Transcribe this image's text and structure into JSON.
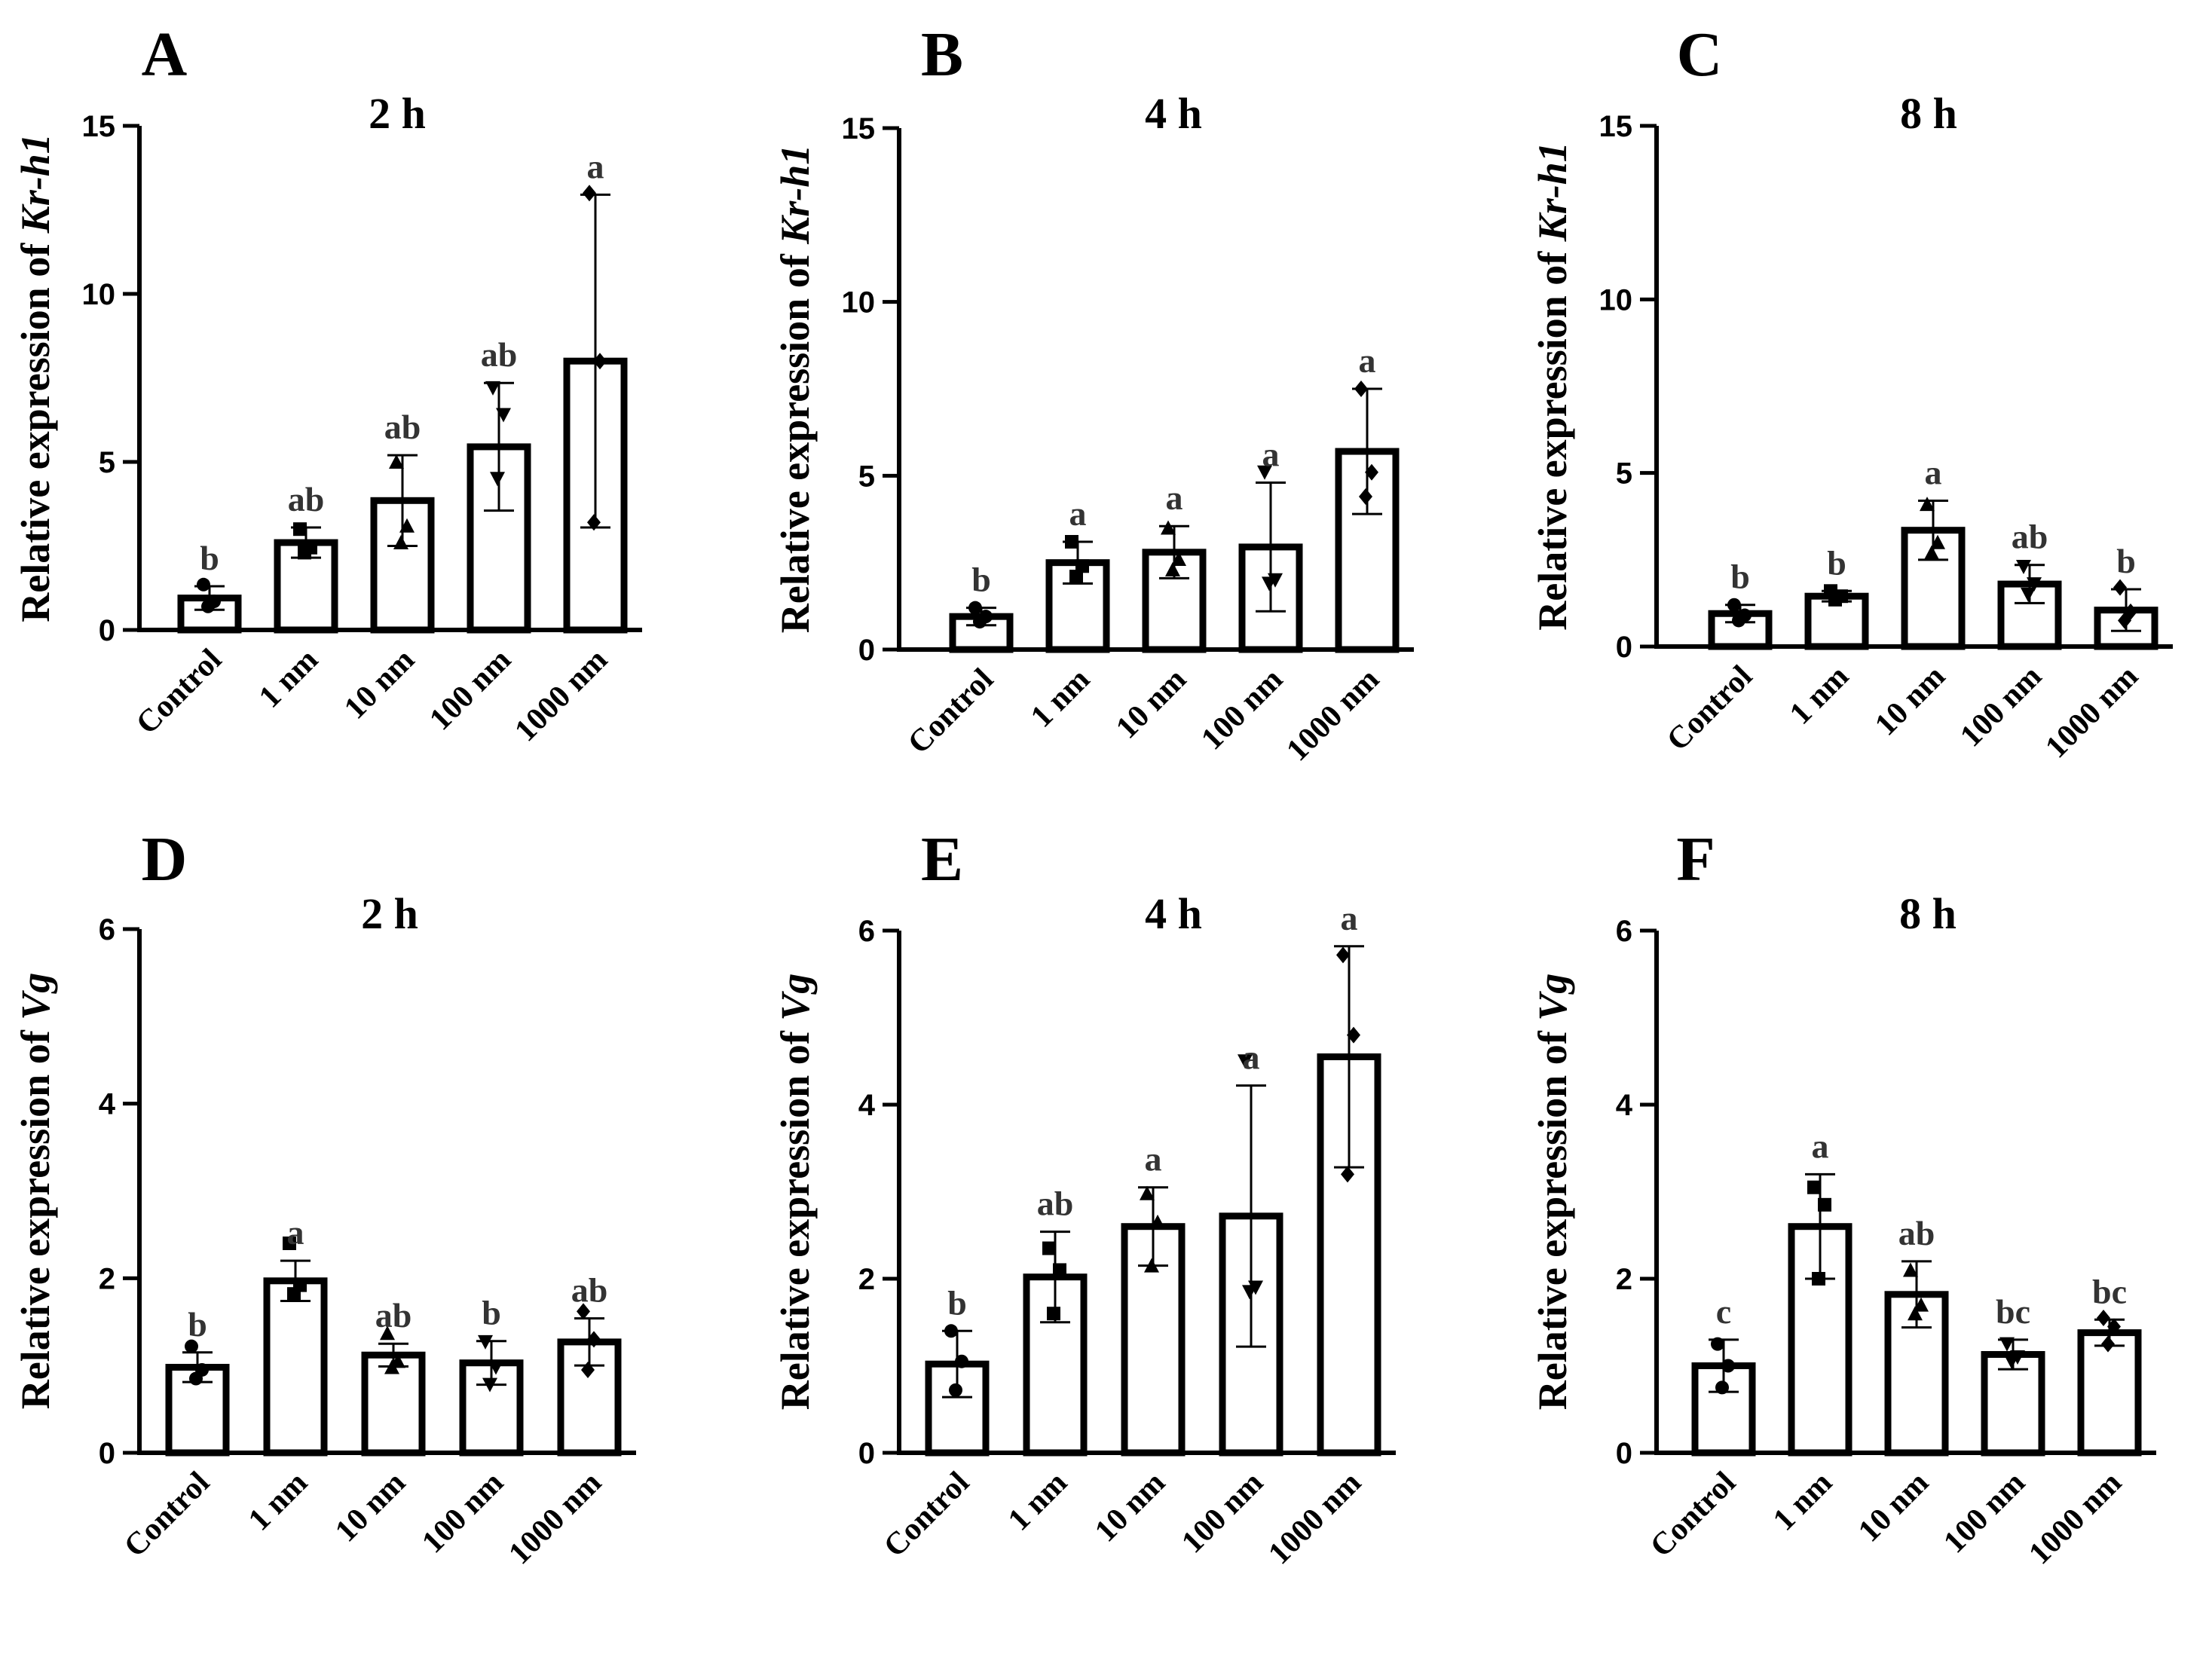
{
  "chart_data": [
    {
      "type": "bar",
      "panel": "A",
      "title": "2 h",
      "ylabel_prefix": "Relative expression of ",
      "ylabel_gene": "Kr-h1",
      "categories": [
        "Control",
        "1 nm",
        "10 nm",
        "100 nm",
        "1000 nm"
      ],
      "values": [
        0.95,
        2.6,
        3.85,
        5.45,
        8.0
      ],
      "errors": [
        0.35,
        0.45,
        1.35,
        1.9,
        4.95
      ],
      "points": [
        [
          1.35,
          0.85,
          0.7
        ],
        [
          3.0,
          2.45,
          2.3
        ],
        [
          5.0,
          3.1,
          2.6
        ],
        [
          7.2,
          6.4,
          4.5
        ],
        [
          13.0,
          8.0,
          3.2
        ]
      ],
      "point_marker": "mixed",
      "significance": [
        "b",
        "ab",
        "ab",
        "ab",
        "a"
      ],
      "ylim": [
        0,
        15
      ],
      "yticks": [
        0,
        5,
        10,
        15
      ]
    },
    {
      "type": "bar",
      "panel": "B",
      "title": "4 h",
      "ylabel_prefix": "Relative expression of ",
      "ylabel_gene": "Kr-h1",
      "categories": [
        "Control",
        "1 nm",
        "10 nm",
        "100 nm",
        "1000 nm"
      ],
      "values": [
        0.95,
        2.5,
        2.8,
        2.95,
        5.7
      ],
      "errors": [
        0.25,
        0.6,
        0.75,
        1.85,
        1.8
      ],
      "points": [
        [
          1.2,
          0.95,
          0.8
        ],
        [
          3.1,
          2.4,
          2.1
        ],
        [
          3.5,
          2.6,
          2.3
        ],
        [
          5.1,
          2.0,
          1.9
        ],
        [
          7.5,
          5.1,
          4.4
        ]
      ],
      "point_marker": "mixed",
      "significance": [
        "b",
        "a",
        "a",
        "a",
        "a"
      ],
      "ylim": [
        0,
        15
      ],
      "yticks": [
        0,
        5,
        10,
        15
      ]
    },
    {
      "type": "bar",
      "panel": "C",
      "title": "8 h",
      "ylabel_prefix": "Relative expression of ",
      "ylabel_gene": "Kr-h1",
      "categories": [
        "Control",
        "1 nm",
        "10 nm",
        "100 nm",
        "1000 nm"
      ],
      "values": [
        0.95,
        1.45,
        3.35,
        1.8,
        1.05
      ],
      "errors": [
        0.25,
        0.15,
        0.85,
        0.55,
        0.6
      ],
      "points": [
        [
          1.2,
          0.9,
          0.75
        ],
        [
          1.6,
          1.45,
          1.35
        ],
        [
          4.1,
          3.0,
          2.7
        ],
        [
          2.3,
          1.8,
          1.5
        ],
        [
          1.7,
          1.0,
          0.75
        ]
      ],
      "point_marker": "mixed",
      "significance": [
        "b",
        "b",
        "a",
        "ab",
        "b"
      ],
      "ylim": [
        0,
        15
      ],
      "yticks": [
        0,
        5,
        10,
        15
      ]
    },
    {
      "type": "bar",
      "panel": "D",
      "title": "2 h",
      "ylabel_prefix": "Relative expression of ",
      "ylabel_gene": "Vg",
      "categories": [
        "Control",
        "1 nm",
        "10 nm",
        "100 nm",
        "1000 nm"
      ],
      "values": [
        0.98,
        1.97,
        1.12,
        1.03,
        1.27
      ],
      "errors": [
        0.17,
        0.23,
        0.13,
        0.25,
        0.27
      ],
      "points": [
        [
          1.22,
          0.95,
          0.85
        ],
        [
          2.4,
          1.92,
          1.82
        ],
        [
          1.37,
          1.05,
          0.98
        ],
        [
          1.27,
          0.98,
          0.78
        ],
        [
          1.62,
          1.3,
          0.95
        ]
      ],
      "point_marker": "mixed",
      "significance": [
        "b",
        "a",
        "ab",
        "b",
        "ab"
      ],
      "ylim": [
        0,
        6
      ],
      "yticks": [
        0,
        2,
        4,
        6
      ]
    },
    {
      "type": "bar",
      "panel": "E",
      "title": "4 h",
      "ylabel_prefix": "Relative expression of ",
      "ylabel_gene": "Vg",
      "categories": [
        "Control",
        "1 nm",
        "10 nm",
        "100 nm",
        "1000 nm"
      ],
      "values": [
        1.02,
        2.02,
        2.6,
        2.72,
        4.55
      ],
      "errors": [
        0.38,
        0.52,
        0.45,
        1.5,
        1.27
      ],
      "points": [
        [
          1.4,
          1.05,
          0.72
        ],
        [
          2.35,
          2.1,
          1.6
        ],
        [
          2.98,
          2.65,
          2.15
        ],
        [
          4.5,
          1.9,
          1.85
        ],
        [
          5.72,
          4.8,
          3.2
        ]
      ],
      "point_marker": "mixed",
      "significance": [
        "b",
        "ab",
        "a",
        "a",
        "a"
      ],
      "ylim": [
        0,
        6
      ],
      "yticks": [
        0,
        2,
        4,
        6
      ]
    },
    {
      "type": "bar",
      "panel": "F",
      "title": "8 h",
      "ylabel_prefix": "Relative expression of ",
      "ylabel_gene": "Vg",
      "categories": [
        "Control",
        "1 nm",
        "10 nm",
        "100 nm",
        "1000 nm"
      ],
      "values": [
        1.0,
        2.6,
        1.82,
        1.13,
        1.38
      ],
      "errors": [
        0.3,
        0.6,
        0.38,
        0.17,
        0.15
      ],
      "points": [
        [
          1.25,
          1.0,
          0.75
        ],
        [
          3.05,
          2.85,
          2.0
        ],
        [
          2.1,
          1.7,
          1.6
        ],
        [
          1.25,
          1.1,
          1.05
        ],
        [
          1.55,
          1.45,
          1.25
        ]
      ],
      "point_marker": "mixed",
      "significance": [
        "c",
        "a",
        "ab",
        "bc",
        "bc"
      ],
      "ylim": [
        0,
        6
      ],
      "yticks": [
        0,
        2,
        4,
        6
      ]
    }
  ]
}
